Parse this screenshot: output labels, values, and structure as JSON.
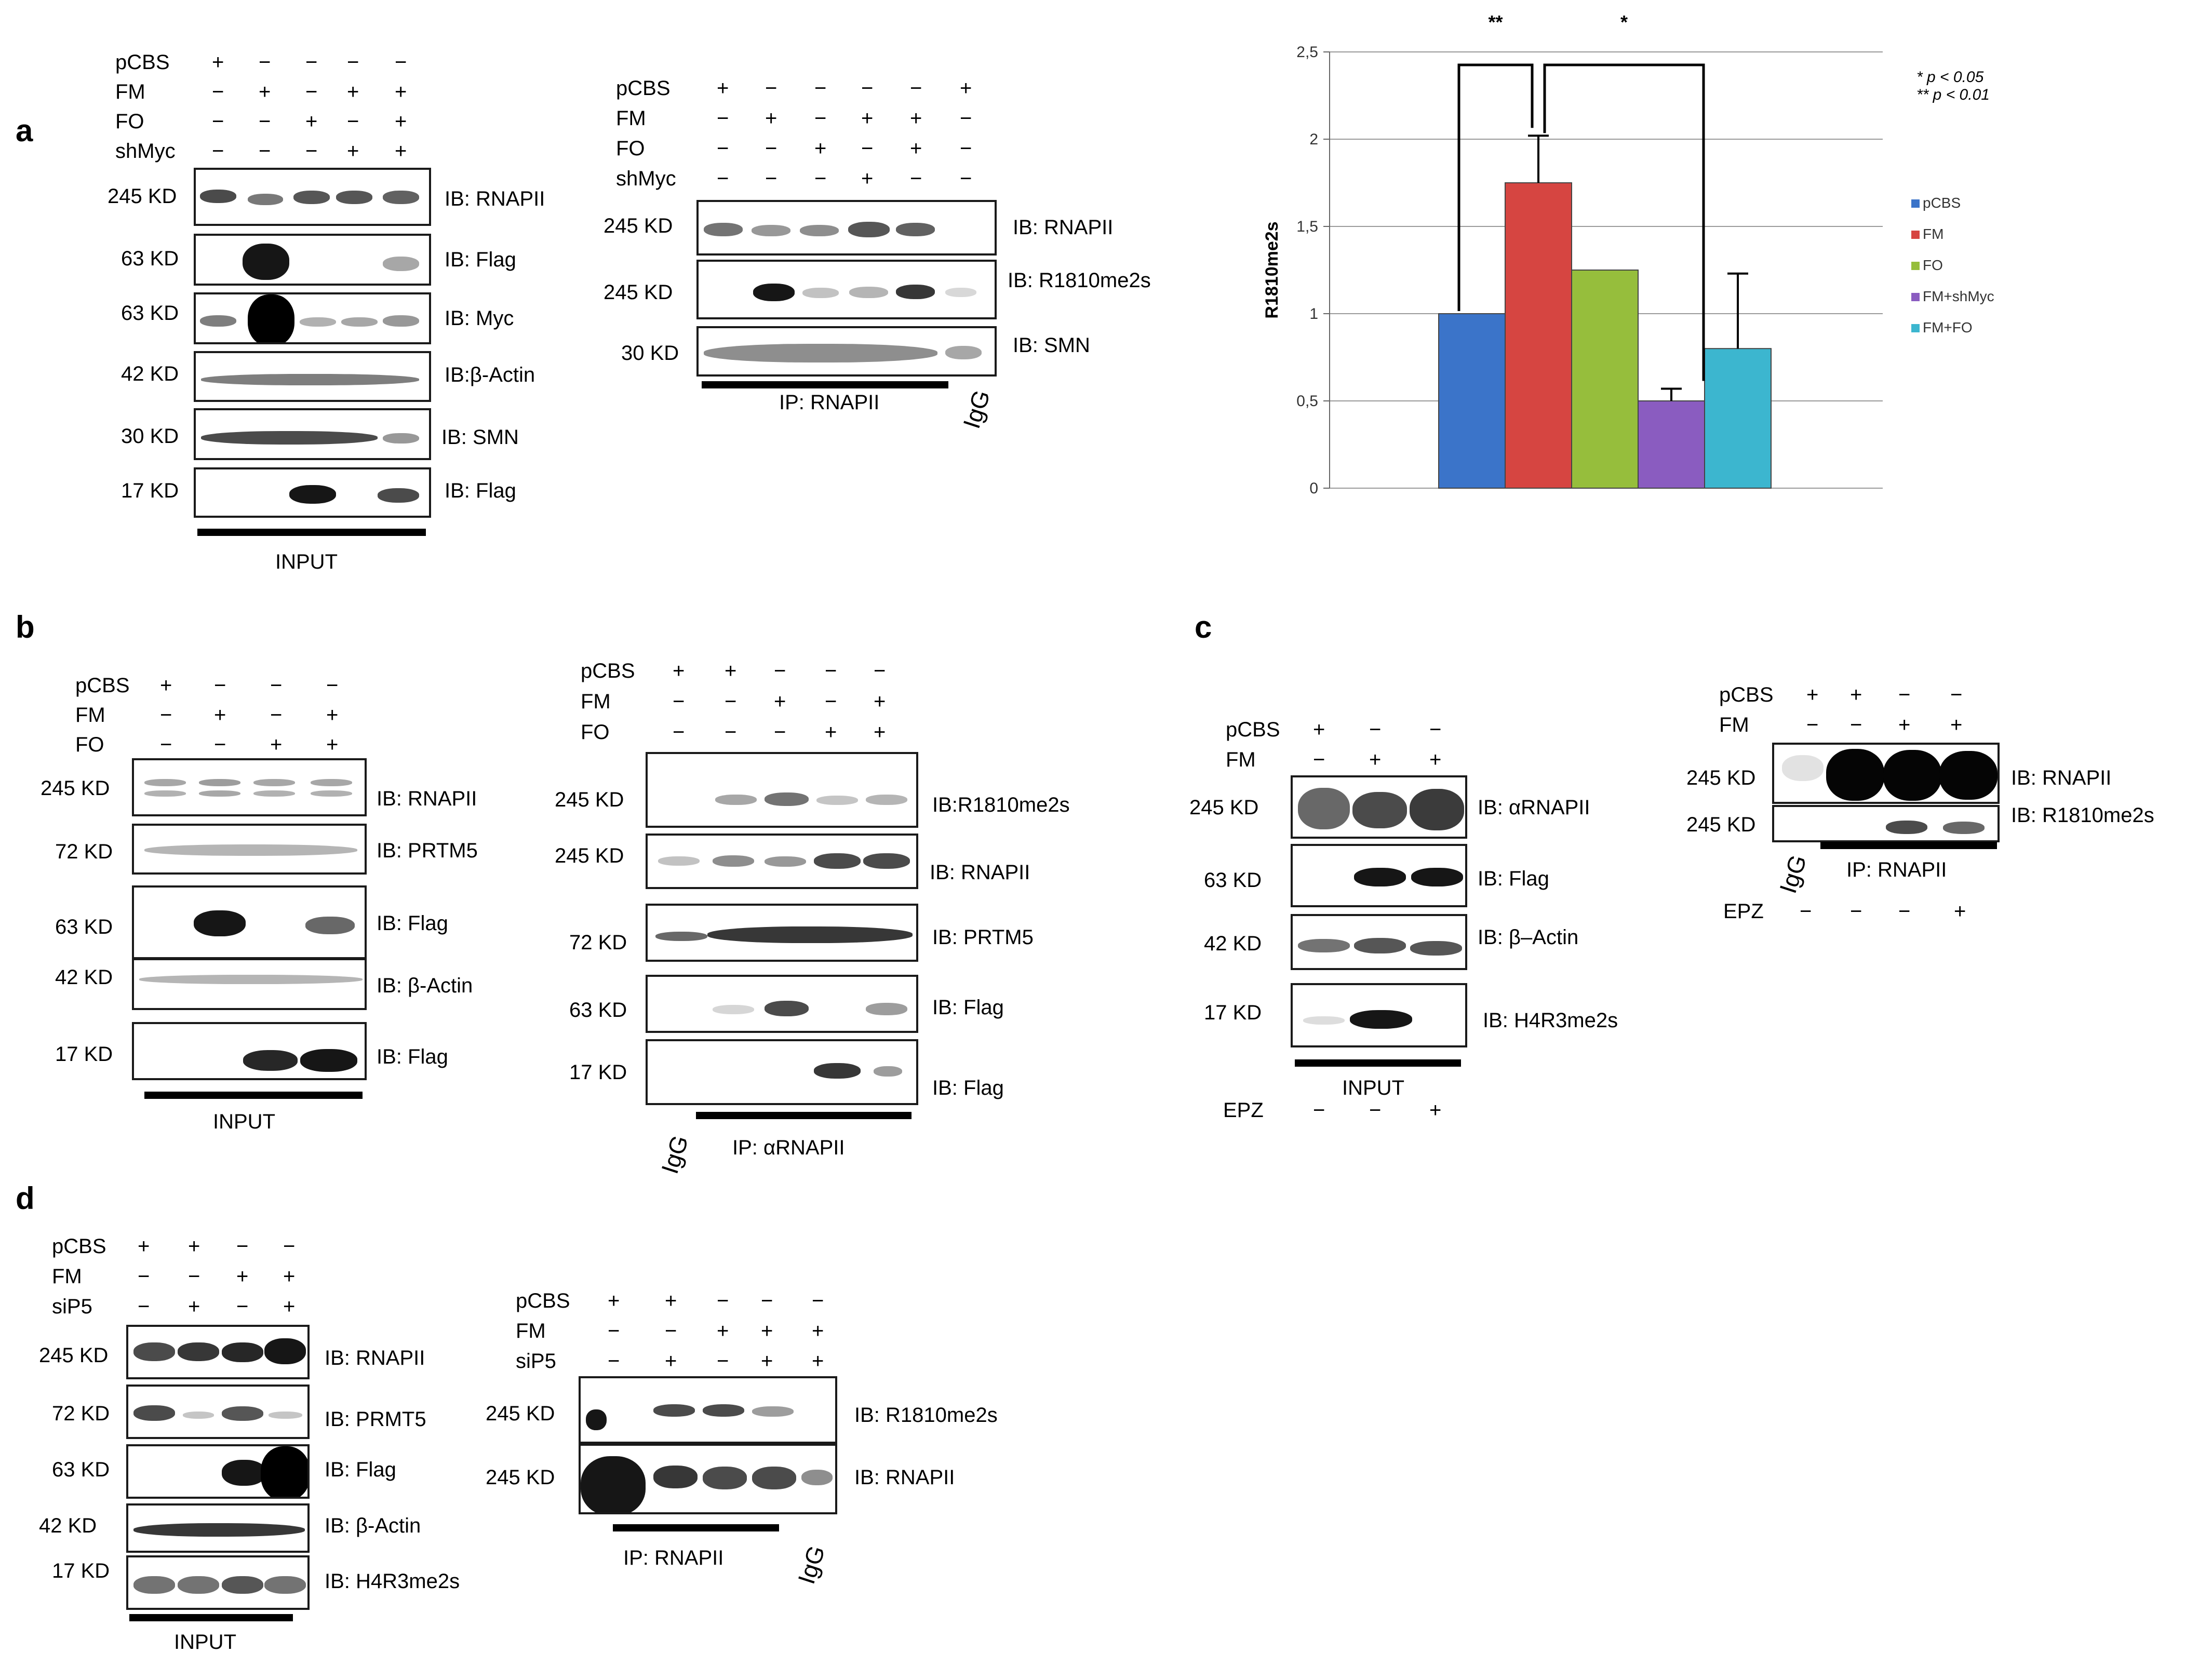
{
  "panels": {
    "a": "a",
    "b": "b",
    "c": "c",
    "d": "d"
  },
  "a": {
    "input": {
      "rows": [
        {
          "name": "pCBS",
          "signs": [
            "+",
            "−",
            "−",
            "−",
            "−"
          ]
        },
        {
          "name": "FM",
          "signs": [
            "−",
            "+",
            "−",
            "+",
            "+"
          ]
        },
        {
          "name": "FO",
          "signs": [
            "−",
            "−",
            "+",
            "−",
            "+"
          ]
        },
        {
          "name": "shMyc",
          "signs": [
            "−",
            "−",
            "−",
            "+",
            "+"
          ]
        }
      ],
      "blots": [
        {
          "kd": "245 KD",
          "ib": "IB: RNAPII"
        },
        {
          "kd": "63 KD",
          "ib": "IB: Flag"
        },
        {
          "kd": "63 KD",
          "ib": "IB: Myc"
        },
        {
          "kd": "42 KD",
          "ib": "IB:β-Actin"
        },
        {
          "kd": "30 KD",
          "ib": "IB: SMN"
        },
        {
          "kd": "17 KD",
          "ib": "IB: Flag"
        }
      ],
      "caption": "INPUT"
    },
    "ip": {
      "rows": [
        {
          "name": "pCBS",
          "signs": [
            "+",
            "−",
            "−",
            "−",
            "−",
            "+"
          ]
        },
        {
          "name": "FM",
          "signs": [
            "−",
            "+",
            "−",
            "+",
            "+",
            "−"
          ]
        },
        {
          "name": "FO",
          "signs": [
            "−",
            "−",
            "+",
            "−",
            "+",
            "−"
          ]
        },
        {
          "name": "shMyc",
          "signs": [
            "−",
            "−",
            "−",
            "+",
            "−",
            "−"
          ]
        }
      ],
      "blots": [
        {
          "kd": "245 KD",
          "ib": "IB: RNAPII"
        },
        {
          "kd": "245 KD",
          "ib": "IB: R1810me2s"
        },
        {
          "kd": "30 KD",
          "ib": "IB: SMN"
        }
      ],
      "caption": "IP: RNAPII",
      "igg": "IgG"
    }
  },
  "chart_data": {
    "type": "bar",
    "categories": [
      "pCBS",
      "FM",
      "FO",
      "FM+shMyc",
      "FM+FO"
    ],
    "values": [
      1.0,
      1.75,
      1.25,
      0.5,
      0.8
    ],
    "errors": [
      0,
      0.27,
      0,
      0.07,
      0.43
    ],
    "colors": [
      "#3b74c9",
      "#d64541",
      "#96be3c",
      "#8a5cc0",
      "#3cb6cf"
    ],
    "ylabel": "R1810me2s",
    "ylim": [
      0,
      2.5
    ],
    "yticks": [
      "0",
      "0,5",
      "1",
      "1,5",
      "2",
      "2,5"
    ],
    "legend": [
      "pCBS",
      "FM",
      "FO",
      "FM+shMyc",
      "FM+FO"
    ],
    "legend_position": "right",
    "significance": [
      {
        "label": "**",
        "pair": [
          "pCBS",
          "FM"
        ]
      },
      {
        "label": "*",
        "pair": [
          "FM",
          "FM+shMyc"
        ]
      }
    ],
    "notes": [
      "* p < 0.05",
      "** p < 0.01"
    ]
  },
  "b": {
    "input": {
      "rows": [
        {
          "name": "pCBS",
          "signs": [
            "+",
            "−",
            "−",
            "−"
          ]
        },
        {
          "name": "FM",
          "signs": [
            "−",
            "+",
            "−",
            "+"
          ]
        },
        {
          "name": "FO",
          "signs": [
            "−",
            "−",
            "+",
            "+"
          ]
        }
      ],
      "blots": [
        {
          "kd": "245 KD",
          "ib": "IB: RNAPII"
        },
        {
          "kd": "72 KD",
          "ib": "IB: PRTM5"
        },
        {
          "kd": "63 KD",
          "ib": "IB: Flag"
        },
        {
          "kd": "42 KD",
          "ib": "IB: β-Actin"
        },
        {
          "kd": "17 KD",
          "ib": "IB: Flag"
        }
      ],
      "caption": "INPUT"
    },
    "ip": {
      "rows": [
        {
          "name": "pCBS",
          "signs": [
            "+",
            "+",
            "−",
            "−",
            "−"
          ]
        },
        {
          "name": "FM",
          "signs": [
            "−",
            "−",
            "+",
            "−",
            "+"
          ]
        },
        {
          "name": "FO",
          "signs": [
            "−",
            "−",
            "−",
            "+",
            "+"
          ]
        }
      ],
      "blots": [
        {
          "kd": "245 KD",
          "ib": "IB:R1810me2s"
        },
        {
          "kd": "245 KD",
          "ib": "IB: RNAPII"
        },
        {
          "kd": "72 KD",
          "ib": "IB: PRTM5"
        },
        {
          "kd": "63 KD",
          "ib": "IB: Flag"
        },
        {
          "kd": "17 KD",
          "ib": "IB: Flag"
        }
      ],
      "caption": "IP: αRNAPII",
      "igg": "IgG"
    }
  },
  "c": {
    "input": {
      "rows": [
        {
          "name": "pCBS",
          "signs": [
            "+",
            "−",
            "−"
          ]
        },
        {
          "name": "FM",
          "signs": [
            "−",
            "+",
            "+"
          ]
        }
      ],
      "blots": [
        {
          "kd": "245 KD",
          "ib": "IB: αRNAPII"
        },
        {
          "kd": "63 KD",
          "ib": "IB: Flag"
        },
        {
          "kd": "42 KD",
          "ib": "IB: β–Actin"
        },
        {
          "kd": "17 KD",
          "ib": "IB: H4R3me2s"
        }
      ],
      "caption": "INPUT",
      "epz": {
        "name": "EPZ",
        "signs": [
          "−",
          "−",
          "+"
        ]
      }
    },
    "ip": {
      "rows": [
        {
          "name": "pCBS",
          "signs": [
            "+",
            "+",
            "−",
            "−"
          ]
        },
        {
          "name": "FM",
          "signs": [
            "−",
            "−",
            "+",
            "+"
          ]
        }
      ],
      "blots": [
        {
          "kd": "245 KD",
          "ib": "IB: RNAPII"
        },
        {
          "kd": "245 KD",
          "ib": "IB: R1810me2s"
        }
      ],
      "caption": "IP: RNAPII",
      "igg": "IgG",
      "epz": {
        "name": "EPZ",
        "signs": [
          "−",
          "−",
          "−",
          "+"
        ]
      }
    }
  },
  "d": {
    "input": {
      "rows": [
        {
          "name": "pCBS",
          "signs": [
            "+",
            "+",
            "−",
            "−"
          ]
        },
        {
          "name": "FM",
          "signs": [
            "−",
            "−",
            "+",
            "+"
          ]
        },
        {
          "name": "siP5",
          "signs": [
            "−",
            "+",
            "−",
            "+"
          ]
        }
      ],
      "blots": [
        {
          "kd": "245 KD",
          "ib": "IB: RNAPII"
        },
        {
          "kd": "72 KD",
          "ib": "IB: PRMT5"
        },
        {
          "kd": "63 KD",
          "ib": "IB: Flag"
        },
        {
          "kd": "42 KD",
          "ib": "IB: β-Actin"
        },
        {
          "kd": "17 KD",
          "ib": "IB: H4R3me2s"
        }
      ],
      "caption": "INPUT"
    },
    "ip": {
      "rows": [
        {
          "name": "pCBS",
          "signs": [
            "+",
            "+",
            "−",
            "−",
            "−"
          ]
        },
        {
          "name": "FM",
          "signs": [
            "−",
            "−",
            "+",
            "+",
            "+"
          ]
        },
        {
          "name": "siP5",
          "signs": [
            "−",
            "+",
            "−",
            "+",
            "+"
          ]
        }
      ],
      "blots": [
        {
          "kd": "245 KD",
          "ib": "IB: R1810me2s"
        },
        {
          "kd": "245 KD",
          "ib": "IB: RNAPII"
        }
      ],
      "caption": "IP: RNAPII",
      "igg": "IgG"
    }
  }
}
